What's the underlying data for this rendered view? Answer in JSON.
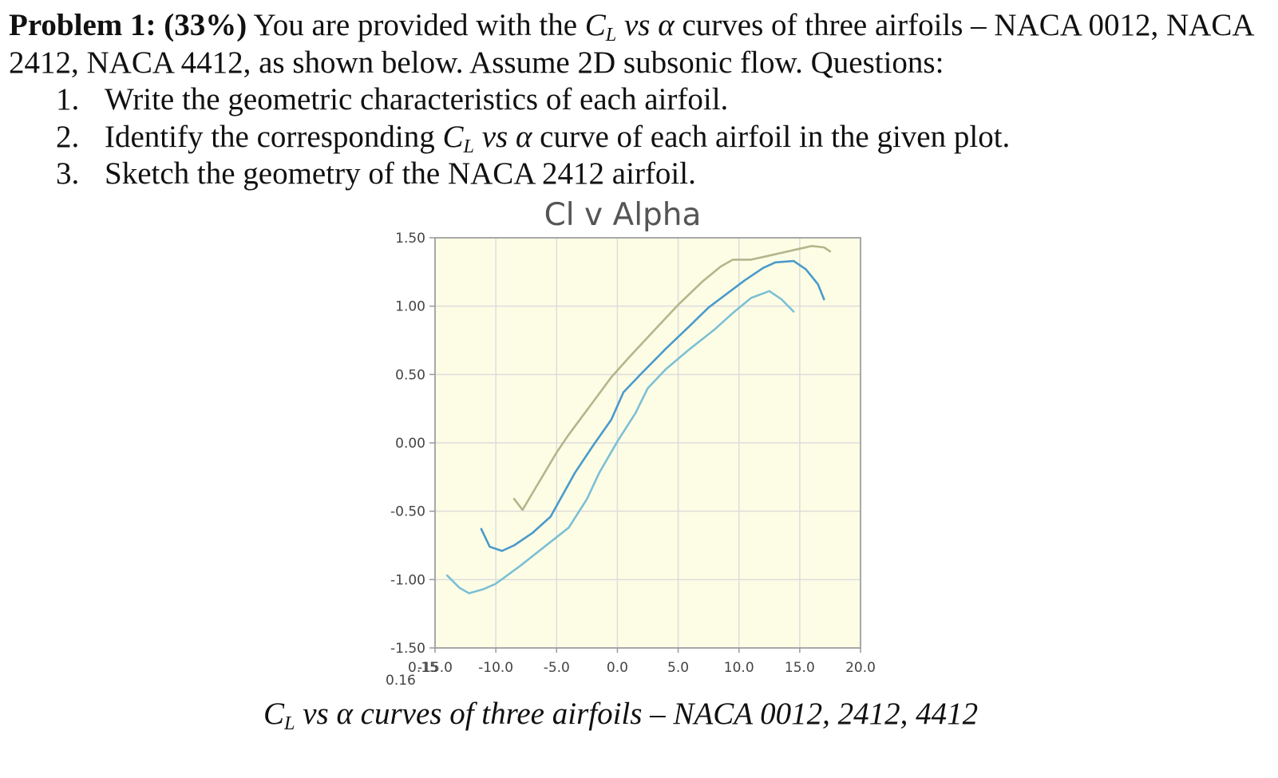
{
  "problem": {
    "label": "Problem 1:",
    "weight": "(33%)",
    "text_before": " You are provided with the ",
    "cl_symbol": "C",
    "cl_sub": "L",
    "vs": " vs ",
    "alpha": "α",
    "text_after": " curves of three airfoils – NACA 0012, NACA 2412, NACA 4412, as shown below. Assume 2D subsonic flow. Questions:"
  },
  "questions": [
    {
      "num": "1.",
      "text": "Write the geometric characteristics of each airfoil."
    },
    {
      "num": "2.",
      "pre": "Identify the corresponding ",
      "post": " curve of each airfoil in the given plot."
    },
    {
      "num": "3.",
      "text": "Sketch the geometry of the NACA 2412 airfoil."
    }
  ],
  "caption": {
    "cl_symbol": "C",
    "cl_sub": "L",
    "rest": " vs α curves of three airfoils – NACA 0012, 2412, 4412"
  },
  "chart_data": {
    "type": "line",
    "title": "Cl v Alpha",
    "xlabel": "",
    "ylabel": "",
    "xlim": [
      -15,
      20
    ],
    "ylim": [
      -1.5,
      1.5
    ],
    "x_ticks": [
      "-15.0",
      "-10.0",
      "-5.0",
      "0.0",
      "5.0",
      "10.0",
      "15.0",
      "20.0"
    ],
    "y_ticks": [
      "1.50",
      "1.00",
      "0.50",
      "0.00",
      "-0.50",
      "-1.00",
      "-1.50"
    ],
    "stray_labels": [
      "0.15",
      "0.16"
    ],
    "grid": true,
    "plot_background": "#fdfde6",
    "grid_color": "#dcdcdc",
    "series": [
      {
        "color": "#b3b68a",
        "points": [
          [
            -8.5,
            -0.41
          ],
          [
            -7.8,
            -0.49
          ],
          [
            -7.0,
            -0.37
          ],
          [
            -6.0,
            -0.22
          ],
          [
            -5.0,
            -0.07
          ],
          [
            -4.0,
            0.06
          ],
          [
            -3.0,
            0.18
          ],
          [
            -2.0,
            0.3
          ],
          [
            -0.5,
            0.48
          ],
          [
            1.0,
            0.63
          ],
          [
            3.0,
            0.82
          ],
          [
            5.0,
            1.01
          ],
          [
            7.0,
            1.18
          ],
          [
            8.5,
            1.29
          ],
          [
            9.5,
            1.34
          ],
          [
            11.0,
            1.34
          ],
          [
            12.5,
            1.37
          ],
          [
            14.0,
            1.4
          ],
          [
            15.0,
            1.42
          ],
          [
            16.0,
            1.44
          ],
          [
            17.0,
            1.43
          ],
          [
            17.5,
            1.4
          ]
        ]
      },
      {
        "color": "#4a9acb",
        "points": [
          [
            -11.2,
            -0.63
          ],
          [
            -10.5,
            -0.76
          ],
          [
            -9.5,
            -0.79
          ],
          [
            -8.5,
            -0.75
          ],
          [
            -7.0,
            -0.66
          ],
          [
            -5.5,
            -0.54
          ],
          [
            -4.5,
            -0.38
          ],
          [
            -3.5,
            -0.22
          ],
          [
            -2.0,
            -0.02
          ],
          [
            -0.5,
            0.17
          ],
          [
            0.5,
            0.37
          ],
          [
            2.0,
            0.51
          ],
          [
            4.0,
            0.69
          ],
          [
            6.0,
            0.86
          ],
          [
            7.5,
            0.99
          ],
          [
            9.0,
            1.09
          ],
          [
            10.5,
            1.19
          ],
          [
            12.0,
            1.28
          ],
          [
            13.0,
            1.32
          ],
          [
            14.5,
            1.33
          ],
          [
            15.5,
            1.27
          ],
          [
            16.5,
            1.16
          ],
          [
            17.0,
            1.05
          ]
        ]
      },
      {
        "color": "#7cc0d5",
        "points": [
          [
            -14.0,
            -0.97
          ],
          [
            -13.0,
            -1.06
          ],
          [
            -12.2,
            -1.1
          ],
          [
            -11.0,
            -1.07
          ],
          [
            -10.0,
            -1.03
          ],
          [
            -8.0,
            -0.9
          ],
          [
            -6.0,
            -0.76
          ],
          [
            -4.0,
            -0.62
          ],
          [
            -2.5,
            -0.41
          ],
          [
            -1.5,
            -0.22
          ],
          [
            0.0,
            0.01
          ],
          [
            1.5,
            0.22
          ],
          [
            2.5,
            0.4
          ],
          [
            4.0,
            0.54
          ],
          [
            6.0,
            0.69
          ],
          [
            8.0,
            0.83
          ],
          [
            9.5,
            0.95
          ],
          [
            11.0,
            1.06
          ],
          [
            12.5,
            1.11
          ],
          [
            13.5,
            1.05
          ],
          [
            14.5,
            0.96
          ]
        ]
      }
    ]
  }
}
